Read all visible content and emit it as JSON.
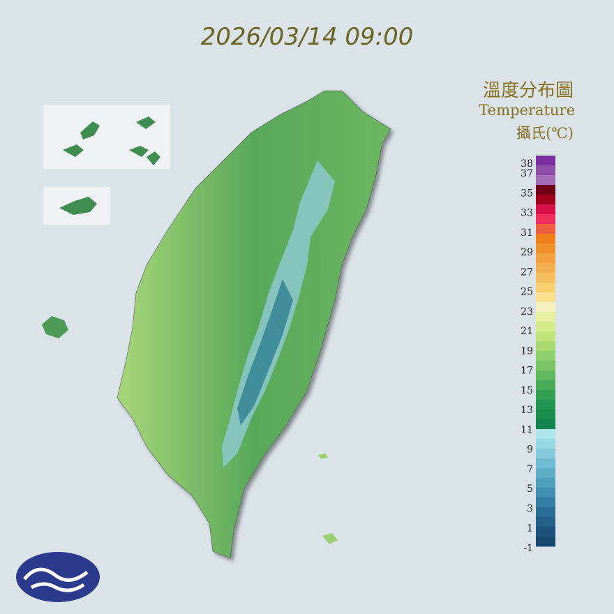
{
  "title": "2026/03/14 09:00",
  "legend": {
    "title": "溫度分布圖",
    "subtitle": "Temperature",
    "unit": "攝氏(℃)",
    "ticks": [
      38,
      37,
      35,
      33,
      31,
      29,
      27,
      25,
      23,
      21,
      19,
      17,
      15,
      13,
      11,
      9,
      7,
      5,
      3,
      1,
      -1
    ],
    "colors": [
      "#7b2f9c",
      "#8e4fa8",
      "#a36bb8",
      "#6e0010",
      "#a0001e",
      "#d8104a",
      "#f0305a",
      "#f06040",
      "#ef7f1a",
      "#f0902a",
      "#f2a040",
      "#f4b050",
      "#f6c060",
      "#f8d070",
      "#f8e090",
      "#f4f0c0",
      "#e6f0a0",
      "#d4ec8c",
      "#c0e47a",
      "#a8da70",
      "#90d06c",
      "#78c466",
      "#60b85e",
      "#48ac58",
      "#34a054",
      "#229650",
      "#1a8c4c",
      "#10844a",
      "#aee6ee",
      "#98d8e4",
      "#84cadc",
      "#70bcd2",
      "#5eaec8",
      "#4e9ebe",
      "#408eb2",
      "#347ea6",
      "#2a6e98",
      "#22608a",
      "#1c527c",
      "#164870"
    ]
  }
}
